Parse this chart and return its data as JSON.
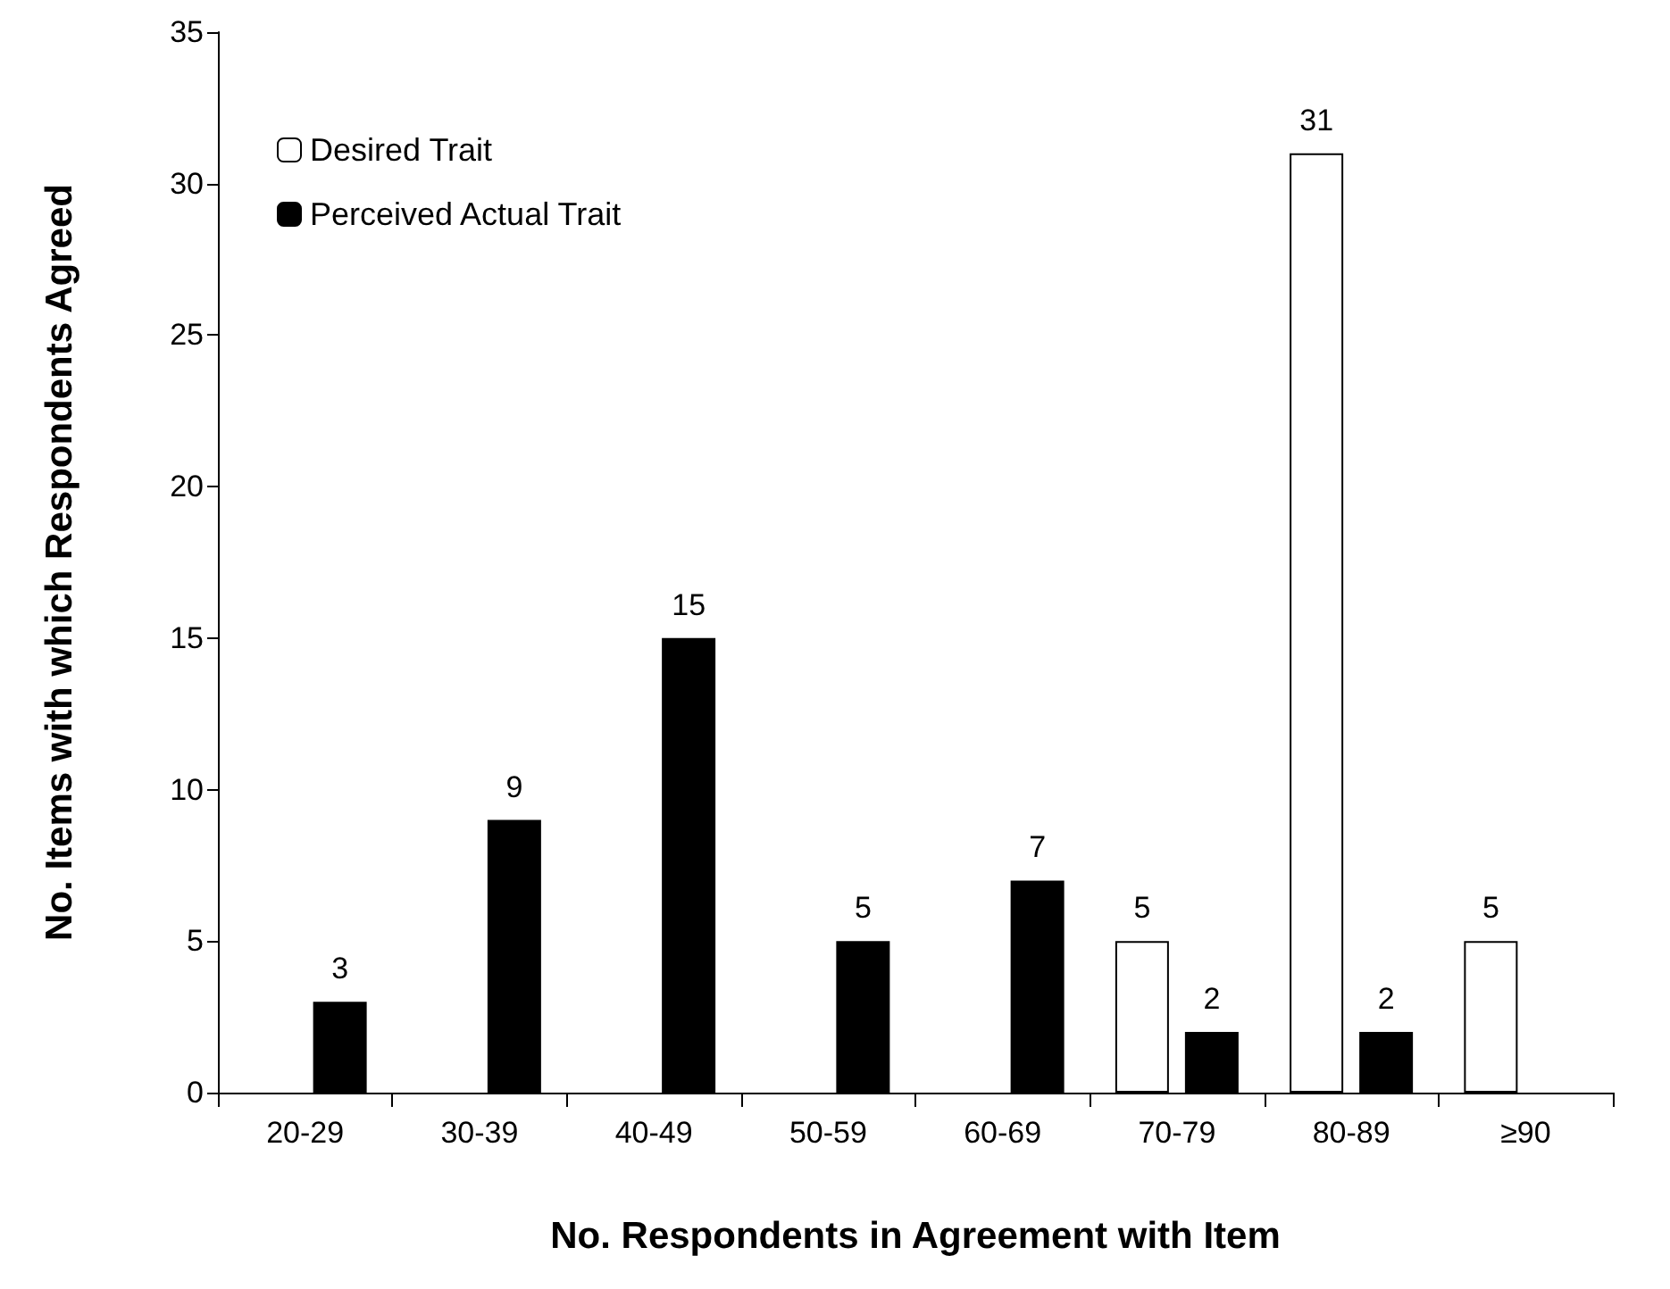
{
  "chart_data": {
    "type": "bar",
    "xlabel": "No. Respondents in Agreement with Item",
    "ylabel": "No. Items with which Respondents Agreed",
    "categories": [
      "20-29",
      "30-39",
      "40-49",
      "50-59",
      "60-69",
      "70-79",
      "80-89",
      "≥90"
    ],
    "series": [
      {
        "name": "Desired Trait",
        "color": "#ffffff",
        "values": [
          null,
          null,
          null,
          null,
          null,
          5,
          31,
          5
        ]
      },
      {
        "name": "Perceived Actual Trait",
        "color": "#000000",
        "values": [
          3,
          9,
          15,
          5,
          7,
          2,
          2,
          null
        ]
      }
    ],
    "ylim": [
      0,
      35
    ],
    "yticks": [
      0,
      5,
      10,
      15,
      20,
      25,
      30,
      35
    ],
    "grid": false,
    "legend": "top left",
    "data_labels": true
  }
}
